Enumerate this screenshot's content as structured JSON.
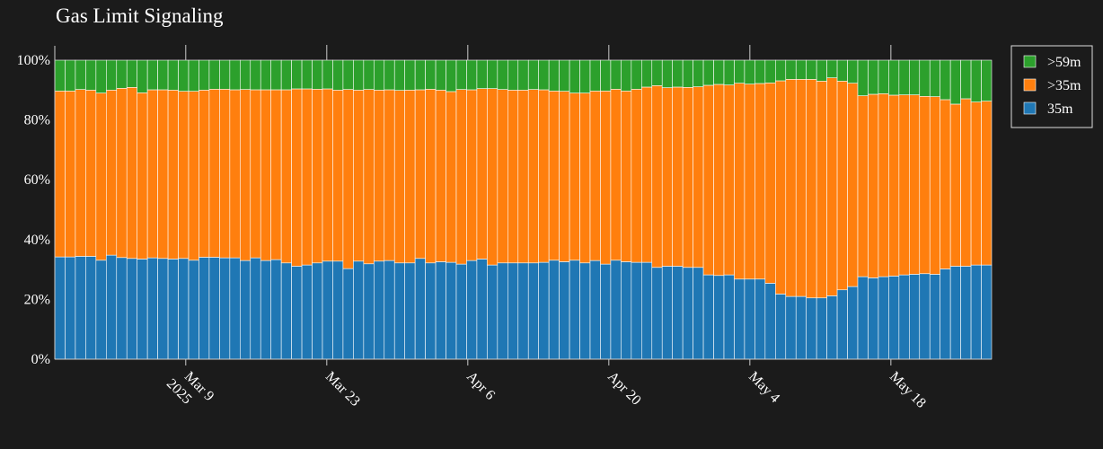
{
  "chart_data": {
    "type": "bar",
    "stacked": true,
    "title": "Gas Limit Signaling",
    "xlabel": "",
    "ylabel": "",
    "ylim": [
      0,
      1
    ],
    "x_range": [
      "2025-02-24",
      "2025-05-28"
    ],
    "y_ticks": [
      {
        "value": 0,
        "label": "0%"
      },
      {
        "value": 0.2,
        "label": "20%"
      },
      {
        "value": 0.4,
        "label": "40%"
      },
      {
        "value": 0.6,
        "label": "60%"
      },
      {
        "value": 0.8,
        "label": "80%"
      },
      {
        "value": 1.0,
        "label": "100%"
      }
    ],
    "x_ticks": [
      {
        "date": "2025-03-09",
        "label": "Mar 9",
        "sublabel": "2025"
      },
      {
        "date": "2025-03-23",
        "label": "Mar 23",
        "sublabel": ""
      },
      {
        "date": "2025-04-06",
        "label": "Apr 6",
        "sublabel": ""
      },
      {
        "date": "2025-04-20",
        "label": "Apr 20",
        "sublabel": ""
      },
      {
        "date": "2025-05-04",
        "label": "May 4",
        "sublabel": ""
      },
      {
        "date": "2025-05-18",
        "label": "May 18",
        "sublabel": ""
      }
    ],
    "legend_placement": "top-right, outside plot",
    "grid": false,
    "series": [
      {
        "name": "35m",
        "color": "#1f77b4",
        "values": [
          0.342,
          0.342,
          0.344,
          0.344,
          0.331,
          0.348,
          0.34,
          0.337,
          0.335,
          0.339,
          0.337,
          0.335,
          0.337,
          0.331,
          0.341,
          0.341,
          0.339,
          0.339,
          0.33,
          0.339,
          0.33,
          0.333,
          0.322,
          0.311,
          0.315,
          0.322,
          0.328,
          0.328,
          0.303,
          0.328,
          0.319,
          0.328,
          0.33,
          0.322,
          0.322,
          0.337,
          0.322,
          0.326,
          0.324,
          0.318,
          0.33,
          0.335,
          0.315,
          0.322,
          0.322,
          0.322,
          0.322,
          0.324,
          0.331,
          0.326,
          0.331,
          0.322,
          0.33,
          0.318,
          0.331,
          0.326,
          0.324,
          0.324,
          0.307,
          0.311,
          0.311,
          0.307,
          0.307,
          0.282,
          0.28,
          0.282,
          0.268,
          0.268,
          0.268,
          0.254,
          0.218,
          0.21,
          0.21,
          0.205,
          0.205,
          0.212,
          0.232,
          0.243,
          0.276,
          0.272,
          0.276,
          0.278,
          0.282,
          0.284,
          0.286,
          0.284,
          0.302,
          0.311,
          0.311,
          0.315,
          0.315
        ]
      },
      {
        "name": ">35m",
        "color": "#ff7f0e",
        "values": [
          0.555,
          0.555,
          0.558,
          0.556,
          0.559,
          0.552,
          0.566,
          0.572,
          0.556,
          0.562,
          0.564,
          0.565,
          0.559,
          0.565,
          0.559,
          0.562,
          0.564,
          0.562,
          0.572,
          0.562,
          0.571,
          0.568,
          0.579,
          0.593,
          0.589,
          0.581,
          0.576,
          0.572,
          0.599,
          0.572,
          0.583,
          0.572,
          0.571,
          0.577,
          0.578,
          0.564,
          0.581,
          0.574,
          0.571,
          0.584,
          0.571,
          0.57,
          0.59,
          0.58,
          0.578,
          0.578,
          0.58,
          0.577,
          0.566,
          0.57,
          0.559,
          0.568,
          0.567,
          0.579,
          0.572,
          0.571,
          0.579,
          0.586,
          0.608,
          0.597,
          0.599,
          0.602,
          0.604,
          0.634,
          0.639,
          0.635,
          0.655,
          0.652,
          0.654,
          0.67,
          0.713,
          0.726,
          0.726,
          0.731,
          0.725,
          0.729,
          0.698,
          0.68,
          0.605,
          0.614,
          0.612,
          0.605,
          0.602,
          0.6,
          0.593,
          0.594,
          0.566,
          0.542,
          0.56,
          0.545,
          0.548
        ]
      },
      {
        "name": ">59m",
        "color": "#2ca02c",
        "values": [
          0.103,
          0.103,
          0.098,
          0.1,
          0.11,
          0.1,
          0.094,
          0.091,
          0.109,
          0.099,
          0.099,
          0.1,
          0.104,
          0.104,
          0.1,
          0.097,
          0.097,
          0.099,
          0.098,
          0.099,
          0.099,
          0.099,
          0.099,
          0.096,
          0.096,
          0.097,
          0.096,
          0.1,
          0.098,
          0.1,
          0.098,
          0.1,
          0.099,
          0.101,
          0.1,
          0.099,
          0.097,
          0.1,
          0.105,
          0.098,
          0.099,
          0.095,
          0.095,
          0.098,
          0.1,
          0.1,
          0.098,
          0.099,
          0.103,
          0.104,
          0.11,
          0.11,
          0.103,
          0.103,
          0.097,
          0.103,
          0.097,
          0.09,
          0.085,
          0.092,
          0.09,
          0.091,
          0.089,
          0.084,
          0.081,
          0.083,
          0.077,
          0.08,
          0.078,
          0.076,
          0.069,
          0.064,
          0.064,
          0.064,
          0.07,
          0.059,
          0.07,
          0.077,
          0.119,
          0.114,
          0.112,
          0.117,
          0.116,
          0.116,
          0.121,
          0.122,
          0.132,
          0.147,
          0.129,
          0.14,
          0.137
        ]
      }
    ]
  }
}
